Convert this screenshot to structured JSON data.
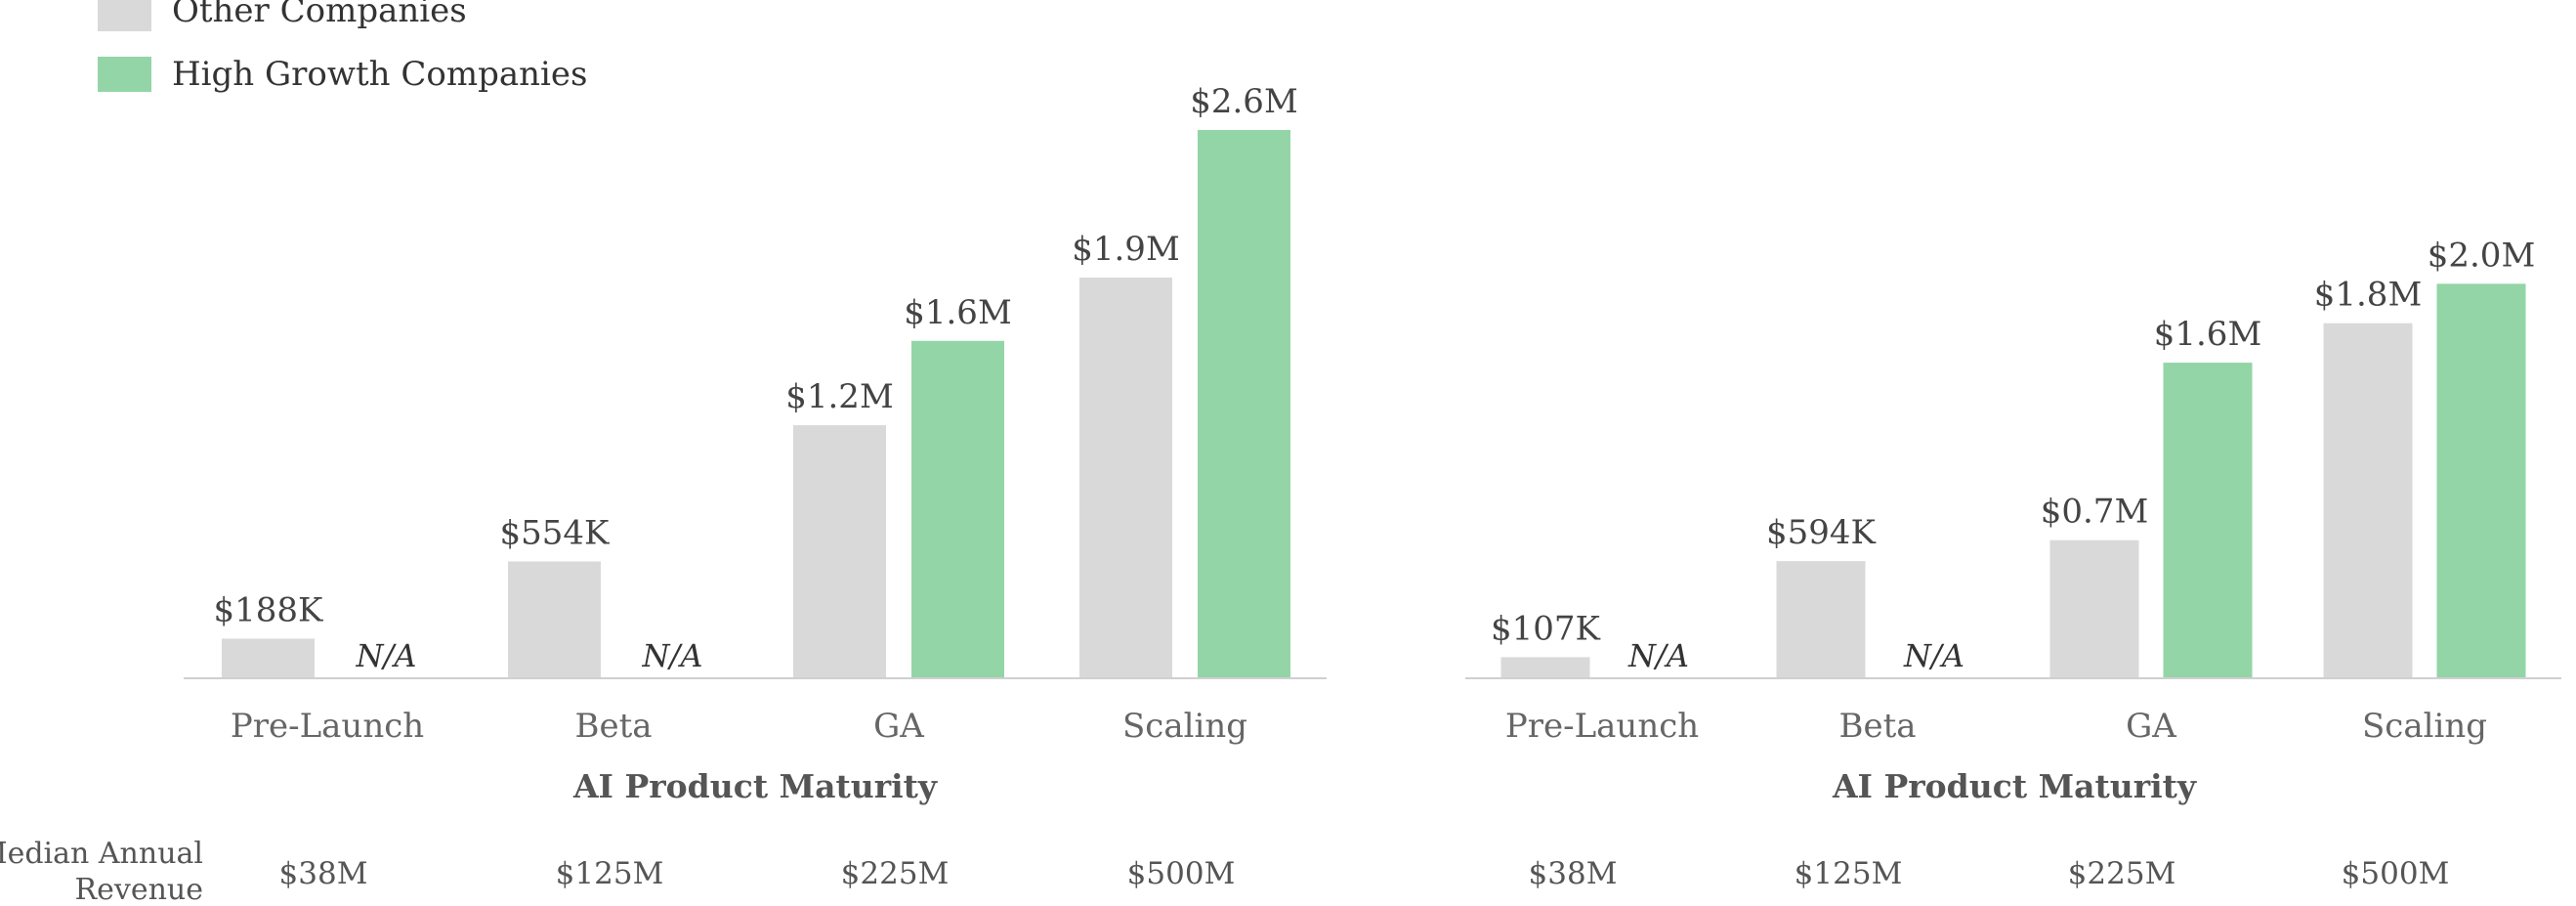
{
  "legend": {
    "items": [
      {
        "label": "Other Companies",
        "color": "#d9d9d9"
      },
      {
        "label": "High Growth Companies",
        "color": "#93d5a6"
      }
    ]
  },
  "chart_data": [
    {
      "type": "bar",
      "xlabel": "AI Product Maturity",
      "categories": [
        "Pre-Launch",
        "Beta",
        "GA",
        "Scaling"
      ],
      "series": [
        {
          "name": "Other Companies",
          "values": [
            0.188,
            0.554,
            1.2,
            1.9
          ],
          "labels": [
            "$188K",
            "$554K",
            "$1.2M",
            "$1.9M"
          ],
          "color": "#d9d9d9"
        },
        {
          "name": "High Growth Companies",
          "values": [
            null,
            null,
            1.6,
            2.6
          ],
          "labels": [
            "N/A",
            "N/A",
            "$1.6M",
            "$2.6M"
          ],
          "color": "#93d5a6"
        }
      ],
      "ylim": [
        0,
        2.6
      ],
      "grid": false,
      "legend_position": "top-left"
    },
    {
      "type": "bar",
      "xlabel": "AI Product Maturity",
      "categories": [
        "Pre-Launch",
        "Beta",
        "GA",
        "Scaling"
      ],
      "series": [
        {
          "name": "Other Companies",
          "values": [
            0.107,
            0.594,
            0.7,
            1.8
          ],
          "labels": [
            "$107K",
            "$594K",
            "$0.7M",
            "$1.8M"
          ],
          "color": "#d9d9d9"
        },
        {
          "name": "High Growth Companies",
          "values": [
            null,
            null,
            1.6,
            2.0
          ],
          "labels": [
            "N/A",
            "N/A",
            "$1.6M",
            "$2.0M"
          ],
          "color": "#93d5a6"
        }
      ],
      "ylim": [
        0,
        2.2
      ],
      "grid": false
    }
  ],
  "revenue_row": {
    "label_line1": "Median Annual",
    "label_line2": "Revenue",
    "values_left": [
      "$38M",
      "$125M",
      "$225M",
      "$500M"
    ],
    "values_right": [
      "$38M",
      "$125M",
      "$225M",
      "$500M"
    ]
  }
}
